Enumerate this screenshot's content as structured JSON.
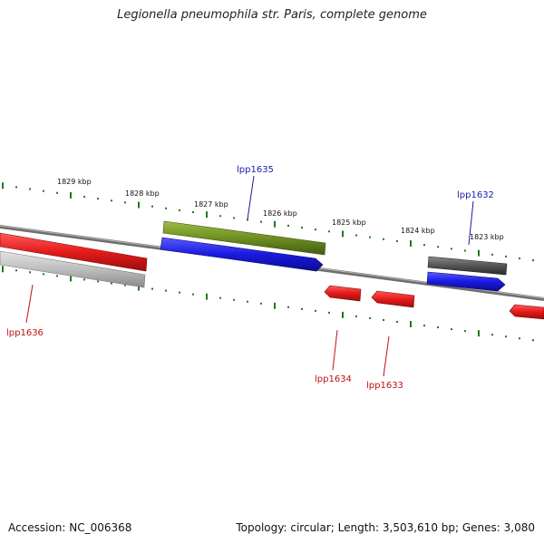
{
  "title": "Legionella pneumophila str. Paris, complete genome",
  "footer": {
    "accession": "Accession: NC_006368",
    "summary": "Topology: circular; Length: 3,503,610 bp; Genes: 3,080"
  },
  "kbp_labels": [
    "1829 kbp",
    "1828 kbp",
    "1827 kbp",
    "1826 kbp",
    "1825 kbp",
    "1824 kbp",
    "1823 kbp"
  ],
  "gene_labels": {
    "lpp1635": "lpp1635",
    "lpp1632": "lpp1632",
    "lpp1636": "lpp1636",
    "lpp1634": "lpp1634",
    "lpp1633": "lpp1633"
  },
  "colors": {
    "forward_label": "#1a1aa8",
    "reverse_label": "#c01010",
    "tick": "#1f7a1f",
    "backbone": "#777777",
    "red_gene": "#e41a1a",
    "blue_gene": "#1a1ae0",
    "olive_gene": "#6f8f22",
    "gray_gene": "#bdbdbd",
    "dark_gene": "#555555"
  }
}
